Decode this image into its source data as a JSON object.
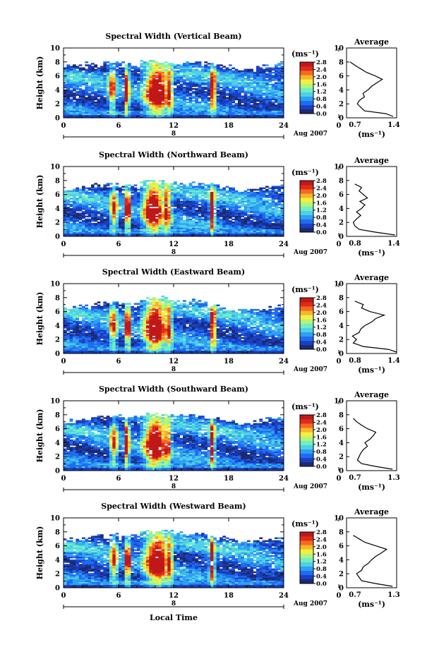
{
  "figure": {
    "x_axis_label": "Local Time",
    "date_label": "Aug 2007",
    "day_label": "8",
    "x_ticks": [
      "0",
      "6",
      "12",
      "18",
      "24",
      "0"
    ],
    "y_ticks": [
      "0",
      "2",
      "4",
      "6",
      "8",
      "10"
    ],
    "y_label": "Height (km)",
    "colorbar_unit": "(ms⁻¹)",
    "colorbar_ticks": [
      "0.0",
      "0.4",
      "0.8",
      "1.2",
      "1.6",
      "2.0",
      "2.4",
      "2.8"
    ],
    "average_title": "Average",
    "average_unit": "(ms⁻¹)",
    "colors": {
      "colormap": [
        "#1c2a6e",
        "#1a3fc4",
        "#1f6cf0",
        "#2fa0f2",
        "#4fd0e8",
        "#6ff0c0",
        "#b4f47a",
        "#f2f040",
        "#f7b52a",
        "#f46a22",
        "#e02a1a",
        "#c01818"
      ]
    }
  },
  "chart_data": [
    {
      "type": "heatmap",
      "title": "Spectral Width (Vertical Beam)",
      "xlabel": "",
      "ylabel": "Height (km)",
      "xlim": [
        0,
        24
      ],
      "ylim": [
        0,
        10
      ],
      "clim": [
        0,
        2.8
      ],
      "top_km": [
        7.5,
        7.8,
        7.2,
        8.0,
        7.0,
        7.6
      ],
      "convective_cells": [
        {
          "t": 5.3,
          "half_width": 0.4,
          "top": 7.5,
          "peak": 1.8
        },
        {
          "t": 6.9,
          "half_width": 0.25,
          "top": 6.0,
          "peak": 2.9
        },
        {
          "t": 10.2,
          "half_width": 1.2,
          "top": 8.0,
          "peak": 3.0
        },
        {
          "t": 11.5,
          "half_width": 0.4,
          "top": 7.8,
          "peak": 2.2
        },
        {
          "t": 16.3,
          "half_width": 0.25,
          "top": 7.0,
          "peak": 2.9
        }
      ],
      "average_profile": {
        "xlim": [
          0.7,
          1.4
        ],
        "xticks": [
          "0.7",
          "1.4"
        ],
        "height_km": [
          0.2,
          0.6,
          1.0,
          1.5,
          2.0,
          2.5,
          3.0,
          3.5,
          4.0,
          4.5,
          5.0,
          5.5,
          6.0,
          6.5,
          7.0,
          7.5,
          8.0
        ],
        "value": [
          1.35,
          1.25,
          0.95,
          0.9,
          0.85,
          0.88,
          0.95,
          0.93,
          1.0,
          1.05,
          1.12,
          1.2,
          1.1,
          0.98,
          0.9,
          0.82,
          0.75
        ]
      }
    },
    {
      "type": "heatmap",
      "title": "Spectral Width (Northward Beam)",
      "xlabel": "",
      "ylabel": "Height (km)",
      "xlim": [
        0,
        24
      ],
      "ylim": [
        0,
        10
      ],
      "clim": [
        0,
        2.8
      ],
      "top_km": [
        6.8,
        7.5,
        7.0,
        7.8,
        6.5,
        7.2
      ],
      "convective_cells": [
        {
          "t": 5.5,
          "half_width": 0.4,
          "top": 7.5,
          "peak": 1.8
        },
        {
          "t": 7.0,
          "half_width": 0.25,
          "top": 5.0,
          "peak": 2.9
        },
        {
          "t": 9.8,
          "half_width": 1.0,
          "top": 7.8,
          "peak": 3.0
        },
        {
          "t": 11.2,
          "half_width": 0.5,
          "top": 7.5,
          "peak": 2.2
        },
        {
          "t": 16.2,
          "half_width": 0.25,
          "top": 6.0,
          "peak": 2.9
        }
      ],
      "average_profile": {
        "xlim": [
          0.8,
          1.4
        ],
        "xticks": [
          "0.8",
          "1.4"
        ],
        "height_km": [
          0.2,
          0.6,
          1.0,
          1.5,
          2.0,
          2.5,
          3.0,
          3.5,
          4.0,
          4.5,
          5.0,
          5.5,
          6.0,
          6.5,
          7.0,
          7.5
        ],
        "value": [
          1.38,
          1.15,
          0.95,
          0.9,
          0.88,
          0.92,
          0.97,
          0.92,
          0.98,
          1.02,
          0.96,
          1.05,
          1.0,
          0.95,
          0.98,
          0.9
        ]
      }
    },
    {
      "type": "heatmap",
      "title": "Spectral Width (Eastward Beam)",
      "xlabel": "",
      "ylabel": "Height (km)",
      "xlim": [
        0,
        24
      ],
      "ylim": [
        0,
        10
      ],
      "clim": [
        0,
        2.8
      ],
      "top_km": [
        6.5,
        7.2,
        7.0,
        7.5,
        6.0,
        6.8
      ],
      "convective_cells": [
        {
          "t": 5.4,
          "half_width": 0.4,
          "top": 7.2,
          "peak": 1.8
        },
        {
          "t": 7.0,
          "half_width": 0.25,
          "top": 6.0,
          "peak": 2.9
        },
        {
          "t": 10.0,
          "half_width": 1.1,
          "top": 7.8,
          "peak": 3.0
        },
        {
          "t": 11.4,
          "half_width": 0.4,
          "top": 7.5,
          "peak": 2.2
        },
        {
          "t": 16.3,
          "half_width": 0.25,
          "top": 6.0,
          "peak": 2.9
        }
      ],
      "average_profile": {
        "xlim": [
          0.8,
          1.4
        ],
        "xticks": [
          "0.8",
          "1.4"
        ],
        "height_km": [
          0.2,
          0.6,
          1.0,
          1.5,
          2.0,
          2.5,
          3.0,
          3.5,
          4.0,
          4.5,
          5.0,
          5.5,
          6.0,
          6.5,
          7.0,
          7.5
        ],
        "value": [
          1.4,
          1.3,
          1.0,
          0.88,
          0.92,
          0.87,
          0.95,
          0.97,
          1.02,
          1.1,
          1.15,
          1.25,
          1.08,
          0.98,
          1.0,
          0.9
        ]
      }
    },
    {
      "type": "heatmap",
      "title": "Spectral Width (Southward Beam)",
      "xlabel": "",
      "ylabel": "Height (km)",
      "xlim": [
        0,
        24
      ],
      "ylim": [
        0,
        10
      ],
      "clim": [
        0,
        2.8
      ],
      "top_km": [
        7.0,
        7.8,
        7.5,
        8.0,
        6.8,
        7.5
      ],
      "convective_cells": [
        {
          "t": 5.5,
          "half_width": 0.4,
          "top": 7.8,
          "peak": 1.8
        },
        {
          "t": 6.9,
          "half_width": 0.25,
          "top": 6.0,
          "peak": 2.9
        },
        {
          "t": 10.0,
          "half_width": 1.1,
          "top": 8.0,
          "peak": 3.0
        },
        {
          "t": 11.3,
          "half_width": 0.4,
          "top": 7.8,
          "peak": 2.2
        },
        {
          "t": 16.2,
          "half_width": 0.25,
          "top": 5.5,
          "peak": 2.9
        }
      ],
      "average_profile": {
        "xlim": [
          0.7,
          1.3
        ],
        "xticks": [
          "0.7",
          "1.3"
        ],
        "height_km": [
          0.2,
          0.6,
          1.0,
          1.5,
          2.0,
          2.5,
          3.0,
          3.5,
          4.0,
          4.5,
          5.0,
          5.5,
          6.0,
          6.5,
          7.0,
          7.5
        ],
        "value": [
          1.25,
          1.05,
          0.88,
          0.83,
          0.85,
          0.87,
          0.9,
          0.95,
          0.92,
          0.98,
          1.02,
          1.05,
          0.95,
          0.88,
          0.82,
          0.78
        ]
      }
    },
    {
      "type": "heatmap",
      "title": "Spectral Width (Westward Beam)",
      "xlabel": "Local Time",
      "ylabel": "Height (km)",
      "xlim": [
        0,
        24
      ],
      "ylim": [
        0,
        10
      ],
      "clim": [
        0,
        2.8
      ],
      "top_km": [
        6.8,
        7.5,
        7.2,
        7.8,
        6.5,
        7.0
      ],
      "convective_cells": [
        {
          "t": 5.5,
          "half_width": 0.4,
          "top": 7.5,
          "peak": 1.8
        },
        {
          "t": 7.0,
          "half_width": 0.25,
          "top": 6.0,
          "peak": 2.9
        },
        {
          "t": 10.2,
          "half_width": 1.2,
          "top": 8.0,
          "peak": 3.0
        },
        {
          "t": 11.5,
          "half_width": 0.4,
          "top": 7.8,
          "peak": 2.2
        },
        {
          "t": 16.2,
          "half_width": 0.25,
          "top": 5.0,
          "peak": 2.9
        }
      ],
      "average_profile": {
        "xlim": [
          0.7,
          1.3
        ],
        "xticks": [
          "0.7",
          "1.3"
        ],
        "height_km": [
          0.2,
          0.6,
          1.0,
          1.5,
          2.0,
          2.5,
          3.0,
          3.5,
          4.0,
          4.5,
          5.0,
          5.5,
          6.0,
          6.5,
          7.0,
          7.5
        ],
        "value": [
          1.25,
          1.05,
          0.88,
          0.85,
          0.82,
          0.88,
          0.9,
          0.96,
          1.0,
          1.05,
          1.12,
          1.18,
          1.05,
          0.92,
          0.85,
          0.78
        ]
      }
    }
  ]
}
